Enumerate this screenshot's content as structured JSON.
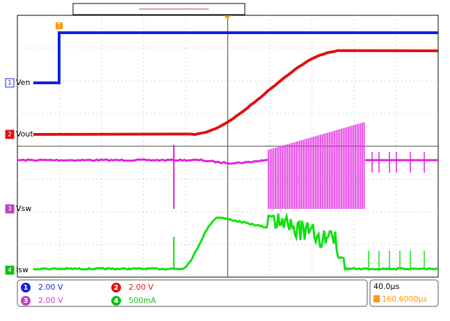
{
  "trigger_marker": "T",
  "channels": [
    {
      "number": "1",
      "label": "Ven",
      "scale": "2.00 V"
    },
    {
      "number": "2",
      "label": "Vout",
      "scale": "2.00 V"
    },
    {
      "number": "3",
      "label": "Vsw",
      "scale": "2.00 V"
    },
    {
      "number": "4",
      "label": "Isw",
      "scale": "500mA"
    }
  ],
  "timebase": {
    "scale": "40.0µs",
    "position": "160.6000µs"
  }
}
